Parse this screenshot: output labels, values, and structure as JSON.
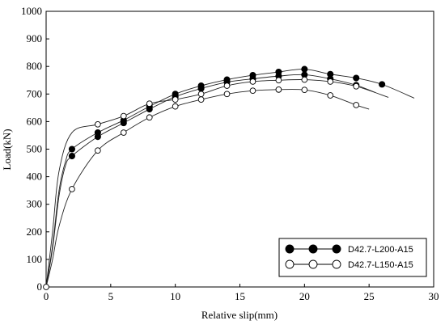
{
  "chart_data": {
    "type": "line",
    "xlabel": "Relative slip(mm)",
    "ylabel": "Load(kN)",
    "xlim": [
      0,
      30
    ],
    "ylim": [
      0,
      1000
    ],
    "xticks": [
      0,
      5,
      10,
      15,
      20,
      25,
      30
    ],
    "yticks": [
      0,
      100,
      200,
      300,
      400,
      500,
      600,
      700,
      800,
      900,
      1000
    ],
    "legend_position": "bottom-right",
    "grid": "none",
    "series": [
      {
        "name": "D42.7-L200-A15",
        "marker": "filled-circle",
        "curves": [
          {
            "x": [
              0,
              0.5,
              1,
              1.5,
              2,
              4,
              6,
              8,
              10,
              12,
              14,
              16,
              18,
              20,
              22,
              24,
              26,
              28.5
            ],
            "y": [
              0,
              150,
              350,
              455,
              500,
              560,
              605,
              655,
              700,
              730,
              752,
              768,
              780,
              790,
              772,
              758,
              735,
              685
            ],
            "markers_x": [
              2,
              4,
              6,
              8,
              10,
              12,
              14,
              16,
              18,
              20,
              22,
              24,
              26
            ],
            "markers_y": [
              500,
              560,
              605,
              655,
              700,
              730,
              752,
              768,
              780,
              790,
              772,
              758,
              735
            ]
          },
          {
            "x": [
              0,
              0.5,
              1,
              1.5,
              2,
              4,
              6,
              8,
              10,
              12,
              14,
              16,
              18,
              20,
              22,
              24,
              25.5
            ],
            "y": [
              0,
              140,
              330,
              440,
              475,
              545,
              595,
              645,
              690,
              720,
              743,
              755,
              765,
              770,
              755,
              732,
              705
            ],
            "markers_x": [
              2,
              4,
              6,
              8,
              10,
              12,
              14,
              16,
              18,
              20,
              22,
              24
            ],
            "markers_y": [
              475,
              545,
              595,
              645,
              690,
              720,
              743,
              755,
              765,
              770,
              755,
              732
            ]
          }
        ]
      },
      {
        "name": "D42.7-L150-A15",
        "marker": "open-circle",
        "curves": [
          {
            "x": [
              0,
              0.5,
              1,
              2,
              4,
              6,
              8,
              10,
              12,
              14,
              16,
              18,
              20,
              22,
              24,
              25
            ],
            "y": [
              0,
              100,
              220,
              355,
              495,
              560,
              615,
              655,
              680,
              700,
              712,
              716,
              715,
              695,
              660,
              645
            ],
            "markers_x": [
              0,
              2,
              4,
              6,
              8,
              10,
              12,
              14,
              16,
              18,
              20,
              22,
              24
            ],
            "markers_y": [
              0,
              355,
              495,
              560,
              615,
              655,
              680,
              700,
              712,
              716,
              715,
              695,
              660
            ]
          },
          {
            "x": [
              0,
              0.5,
              1,
              2,
              4,
              6,
              8,
              10,
              12,
              14,
              16,
              18,
              20,
              22,
              24,
              26.5
            ],
            "y": [
              0,
              200,
              420,
              560,
              590,
              620,
              665,
              680,
              700,
              730,
              745,
              750,
              752,
              745,
              728,
              688
            ],
            "markers_x": [
              4,
              6,
              8,
              10,
              12,
              14,
              16,
              18,
              20,
              22,
              24
            ],
            "markers_y": [
              590,
              620,
              665,
              680,
              700,
              730,
              745,
              750,
              752,
              745,
              728
            ]
          }
        ]
      }
    ]
  }
}
